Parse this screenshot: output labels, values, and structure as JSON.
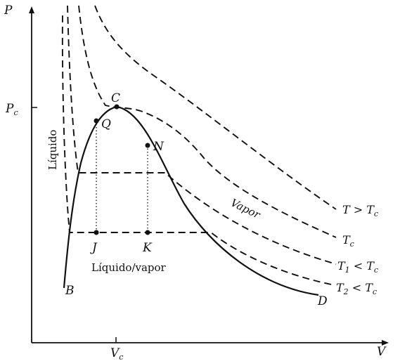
{
  "axes": {
    "x_label": "V",
    "y_label": "P",
    "x_mark": {
      "base": "V",
      "sub": "c"
    },
    "y_mark": {
      "base": "P",
      "sub": "c"
    }
  },
  "points": {
    "critical": "C",
    "q": "Q",
    "n": "N",
    "j": "J",
    "k": "K",
    "b": "B",
    "d": "D"
  },
  "regions": {
    "liquid": "Líquido",
    "vapor": "Vapor",
    "mixture": "Líquido/vapor"
  },
  "isotherms": [
    {
      "parts": [
        "T > T",
        "c"
      ]
    },
    {
      "parts": [
        "T",
        "c"
      ]
    },
    {
      "parts": [
        "T",
        "1",
        " < T",
        "c"
      ]
    },
    {
      "parts": [
        "T",
        "2",
        " < T",
        "c"
      ]
    }
  ]
}
